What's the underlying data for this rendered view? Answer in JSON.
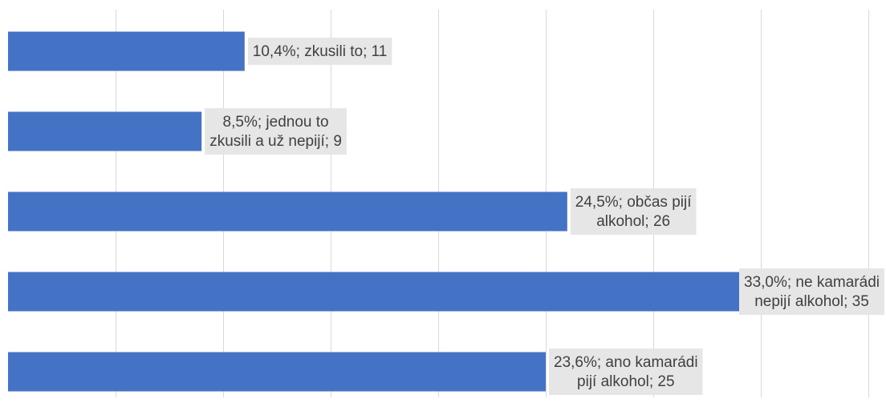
{
  "chart_data": {
    "type": "bar",
    "orientation": "horizontal",
    "title": "",
    "xlabel": "",
    "ylabel": "",
    "xlim": [
      0,
      40
    ],
    "grid": true,
    "legend": "none",
    "bar_color": "#4472c4",
    "label_bg_color": "#e6e6e6",
    "categories": [
      "zkusili to",
      "jednou to zkusili a už nepijí",
      "občas pijí alkohol",
      "ne kamarádi nepijí alkohol",
      "ano kamarádi pijí alkohol"
    ],
    "values": [
      11,
      9,
      26,
      35,
      25
    ],
    "percentages": [
      "10,4%",
      "8,5%",
      "24,5%",
      "33,0%",
      "23,6%"
    ],
    "data_labels": [
      [
        "10,4%; zkusili to; 11"
      ],
      [
        "8,5%; jednou to",
        "zkusili a už nepijí; 9"
      ],
      [
        "24,5%; občas pijí",
        "alkohol; 26"
      ],
      [
        "33,0%; ne kamarádi",
        "nepijí alkohol; 35"
      ],
      [
        "23,6%; ano kamarádi",
        "pijí alkohol; 25"
      ]
    ]
  }
}
